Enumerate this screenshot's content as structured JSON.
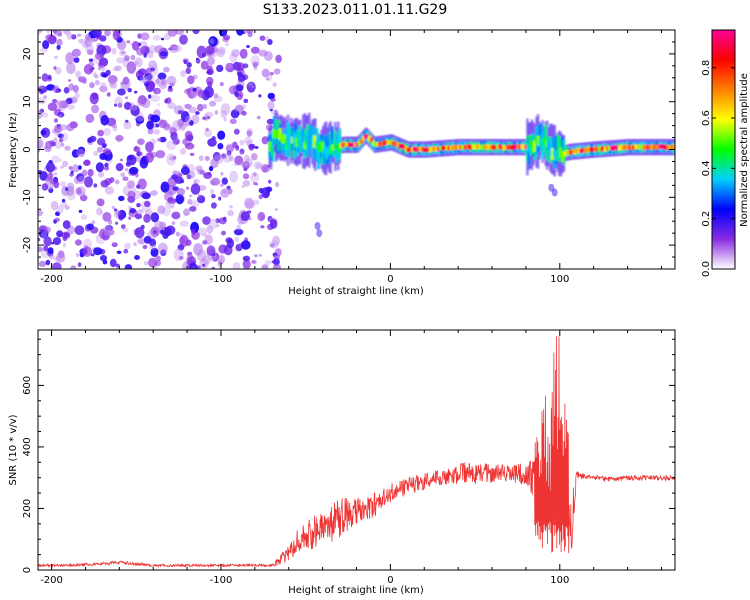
{
  "title": "S133.2023.011.01.11.G29",
  "chart_data": [
    {
      "type": "heatmap",
      "title": "S133.2023.011.01.11.G29",
      "xlabel": "Height of straight line (km)",
      "ylabel": "Frequency (Hz)",
      "xlim": [
        -208,
        168
      ],
      "ylim": [
        -25,
        25
      ],
      "x_ticks": [
        -200,
        -100,
        0,
        100
      ],
      "y_ticks": [
        -20,
        -10,
        0,
        10,
        20
      ],
      "colorbar": {
        "label": "Normalized spectral amplitude",
        "range": [
          0,
          0.95
        ],
        "ticks": [
          0.0,
          0.2,
          0.4,
          0.6,
          0.8
        ],
        "colors": [
          "#ffffff",
          "#8a2be2",
          "#0000ff",
          "#00d0ff",
          "#00ff00",
          "#ffff00",
          "#ff8000",
          "#ff0000",
          "#ff0099"
        ]
      },
      "features": {
        "noise_region_x": [
          -208,
          -70
        ],
        "noise_freq_range": [
          -25,
          25
        ],
        "signal_center_freq": [
          [
            -70,
            3
          ],
          [
            -62,
            2
          ],
          [
            -55,
            1.5
          ],
          [
            -48,
            2
          ],
          [
            -42,
            0
          ],
          [
            -35,
            0.5
          ],
          [
            -28,
            1
          ],
          [
            -20,
            1
          ],
          [
            -15,
            3
          ],
          [
            -10,
            1
          ],
          [
            0,
            1.5
          ],
          [
            10,
            0
          ],
          [
            20,
            0
          ],
          [
            40,
            0.5
          ],
          [
            60,
            0.5
          ],
          [
            80,
            0.5
          ],
          [
            88,
            2
          ],
          [
            95,
            0
          ],
          [
            100,
            -1
          ],
          [
            105,
            -0.5
          ],
          [
            120,
            0
          ],
          [
            140,
            0.5
          ],
          [
            168,
            0.5
          ]
        ]
      }
    },
    {
      "type": "line",
      "xlabel": "Height of straight line (km)",
      "ylabel": "SNR (10 * v/v)",
      "xlim": [
        -208,
        168
      ],
      "ylim": [
        0,
        780
      ],
      "x_ticks": [
        -200,
        -100,
        0,
        100
      ],
      "y_ticks": [
        0,
        200,
        400,
        600
      ],
      "series": [
        {
          "color": "#ee3333",
          "x": [
            -208,
            -190,
            -170,
            -160,
            -150,
            -140,
            -120,
            -100,
            -80,
            -70,
            -65,
            -60,
            -55,
            -50,
            -45,
            -40,
            -35,
            -30,
            -25,
            -20,
            -15,
            -10,
            -5,
            0,
            5,
            10,
            15,
            20,
            25,
            30,
            35,
            40,
            45,
            50,
            55,
            60,
            65,
            70,
            75,
            80,
            85,
            88,
            91,
            94,
            97,
            100,
            103,
            106,
            110,
            120,
            130,
            140,
            150,
            160,
            168
          ],
          "y": [
            15,
            15,
            20,
            25,
            20,
            15,
            15,
            15,
            15,
            15,
            30,
            60,
            90,
            110,
            120,
            130,
            150,
            170,
            180,
            190,
            200,
            210,
            230,
            250,
            260,
            270,
            280,
            290,
            300,
            300,
            305,
            310,
            320,
            310,
            320,
            310,
            320,
            310,
            315,
            310,
            300,
            200,
            350,
            150,
            500,
            200,
            450,
            100,
            310,
            300,
            295,
            300,
            300,
            298,
            300
          ],
          "spread": [
            5,
            5,
            6,
            6,
            6,
            5,
            5,
            5,
            5,
            5,
            20,
            40,
            50,
            60,
            70,
            70,
            80,
            80,
            70,
            60,
            50,
            50,
            40,
            40,
            40,
            40,
            35,
            35,
            30,
            30,
            35,
            40,
            45,
            40,
            40,
            35,
            35,
            35,
            40,
            50,
            80,
            200,
            200,
            200,
            200,
            200,
            200,
            150,
            15,
            10,
            10,
            10,
            10,
            10,
            10
          ]
        }
      ]
    }
  ]
}
